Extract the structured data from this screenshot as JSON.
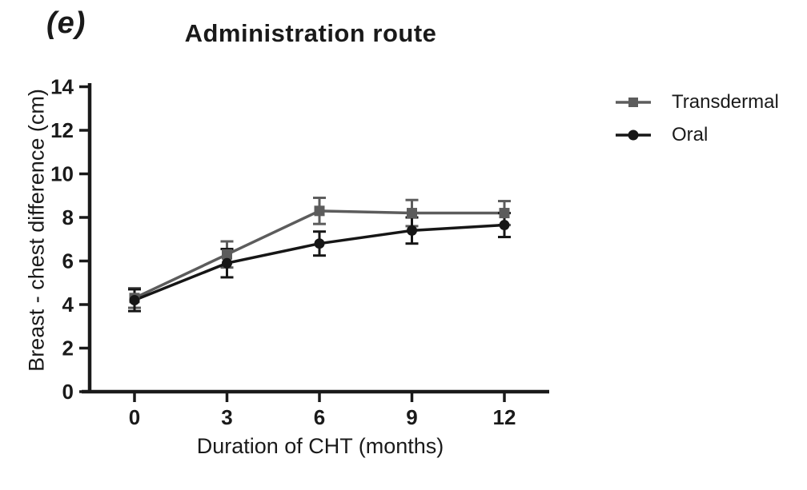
{
  "figure": {
    "panel_label": "(e)",
    "title": "Administration route"
  },
  "chart_data": {
    "type": "line",
    "title": "Administration route",
    "xlabel": "Duration of CHT (months)",
    "ylabel": "Breast - chest difference (cm)",
    "x": [
      0,
      3,
      6,
      9,
      12
    ],
    "xticks": [
      0,
      3,
      6,
      9,
      12
    ],
    "yticks": [
      0,
      2,
      4,
      6,
      8,
      10,
      12,
      14
    ],
    "ylim": [
      0,
      14
    ],
    "xlim": [
      -1.7,
      13.5
    ],
    "grid": false,
    "legend_position": "right",
    "error_bars": true,
    "series": [
      {
        "name": "Transdermal",
        "marker": "square",
        "color": "#5c5c5c",
        "values": [
          4.3,
          6.3,
          8.3,
          8.2,
          8.2
        ],
        "errors": [
          0.45,
          0.6,
          0.6,
          0.6,
          0.55
        ]
      },
      {
        "name": "Oral",
        "marker": "circle",
        "color": "#161616",
        "values": [
          4.2,
          5.9,
          6.8,
          7.4,
          7.65
        ],
        "errors": [
          0.5,
          0.65,
          0.55,
          0.6,
          0.55
        ]
      }
    ],
    "axis_color": "#1a1a1a"
  }
}
